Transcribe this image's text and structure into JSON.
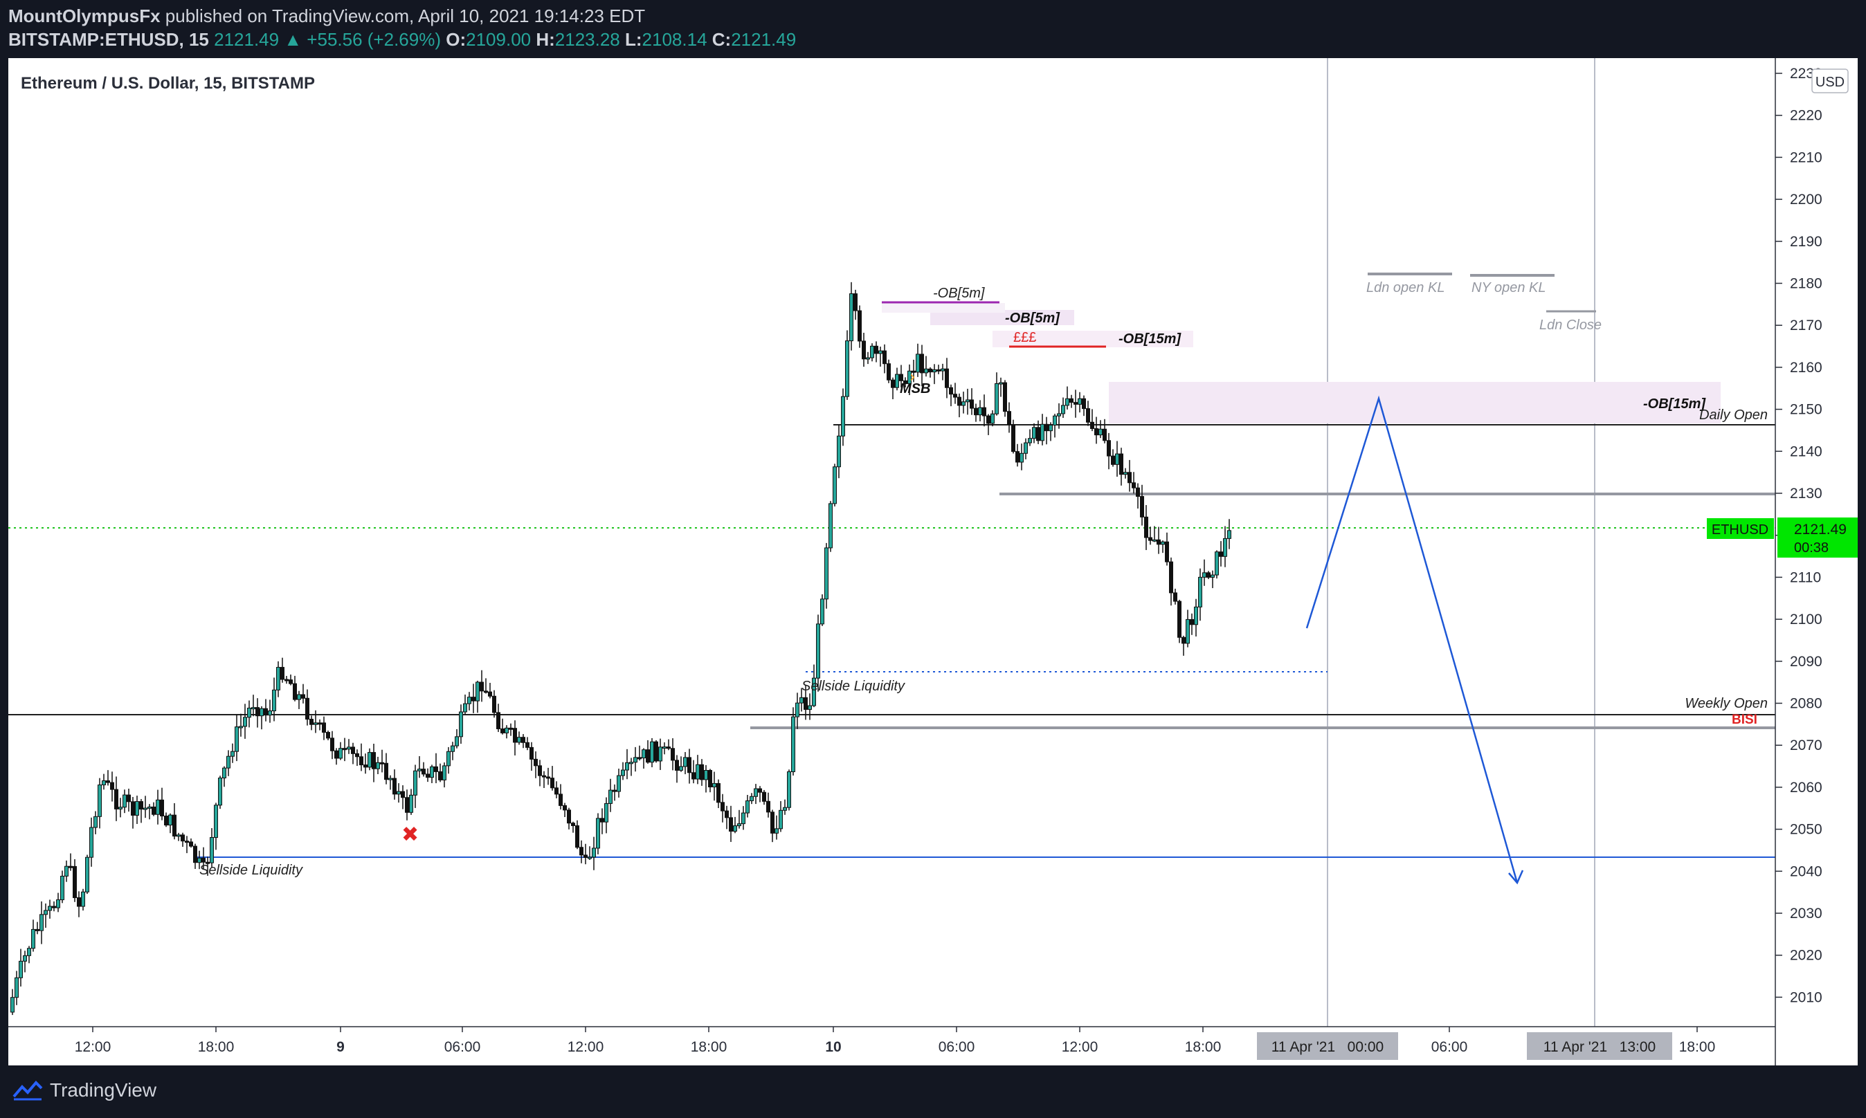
{
  "header": {
    "author": "MountOlympusFx",
    "published_text": "published on TradingView.com, April 10, 2021 19:14:23 EDT",
    "symbol": "BITSTAMP:ETHUSD, 15",
    "last": "2121.49",
    "change": "+55.56 (+2.69%)",
    "open_label": "O:",
    "open": "2109.00",
    "high_label": "H:",
    "high": "2123.28",
    "low_label": "L:",
    "low": "2108.14",
    "close_label": "C:",
    "close": "2121.49"
  },
  "chart": {
    "title": "Ethereum / U.S. Dollar, 15, BITSTAMP",
    "currency": "USD",
    "price_badge": {
      "symbol": "ETHUSD",
      "price": "2121.49",
      "countdown": "00:38"
    },
    "colors": {
      "up_candle": "#26a69a",
      "badge": "#00e600",
      "trend_line": "#1e58d6",
      "ob_zone": "#f3e8f5",
      "eee_line": "#e02424"
    }
  },
  "axis": {
    "y_ticks": [
      "2230",
      "2220",
      "2210",
      "2200",
      "2190",
      "2180",
      "2170",
      "2160",
      "2150",
      "2140",
      "2130",
      "2120",
      "2110",
      "2100",
      "2090",
      "2080",
      "2070",
      "2060",
      "2050",
      "2040",
      "2030",
      "2020",
      "2010"
    ],
    "x_ticks": [
      "12:00",
      "18:00",
      "9",
      "06:00",
      "12:00",
      "18:00",
      "10",
      "06:00",
      "12:00",
      "18:00",
      "06:00",
      "18:00"
    ],
    "x_badges": [
      "11 Apr '21   00:00",
      "11 Apr '21   13:00"
    ]
  },
  "annotations": {
    "ob5m_a": "-OB[5m]",
    "ob5m_b": "-OB[5m]",
    "ob15m_a": "-OB[15m]",
    "ob15m_b": "-OB[15m]",
    "eee": "£££",
    "msb": "MSB",
    "sellside_1": "Sellside Liquidity",
    "sellside_2": "Sellside Liquidity",
    "daily_open": "Daily Open",
    "weekly_open": "Weekly Open",
    "bisi": "BISI",
    "ldn_open": "Ldn open KL",
    "ny_open": "NY open KL",
    "ldn_close": "Ldn Close"
  },
  "footer": {
    "brand": "TradingView"
  }
}
